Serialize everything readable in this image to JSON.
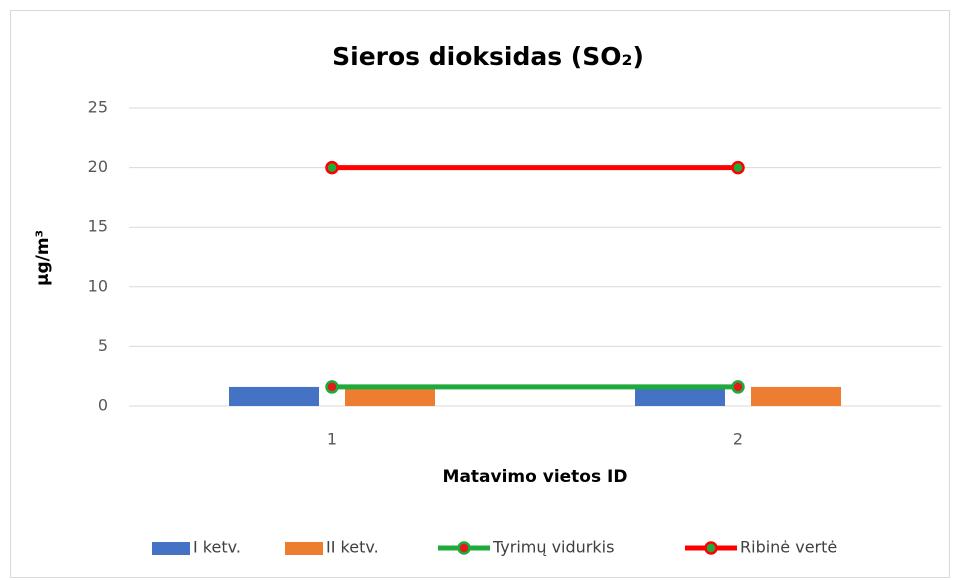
{
  "chart_data": {
    "type": "bar",
    "title": "Sieros dioksidas (SO₂)",
    "x_label": "Matavimo vietos ID",
    "y_label": "µg/m³",
    "categories": [
      "1",
      "2"
    ],
    "series": [
      {
        "name": "I ketv.",
        "type": "bar",
        "color": "#4472c4",
        "values": [
          1.6,
          1.6
        ]
      },
      {
        "name": "II ketv.",
        "type": "bar",
        "color": "#ed7d31",
        "values": [
          1.6,
          1.6
        ]
      },
      {
        "name": "Tyrimų vidurkis",
        "type": "line",
        "color": "#1fab3c",
        "marker_color": "#e31a1a",
        "values": [
          1.6,
          1.6
        ]
      },
      {
        "name": "Ribinė vertė",
        "type": "line",
        "color": "#ff0000",
        "marker_color": "#1fab3c",
        "values": [
          20,
          20
        ]
      }
    ],
    "ylim": [
      0,
      25
    ],
    "yticks": [
      0,
      5,
      10,
      15,
      20,
      25
    ],
    "grid": true,
    "legend": "bottom"
  }
}
